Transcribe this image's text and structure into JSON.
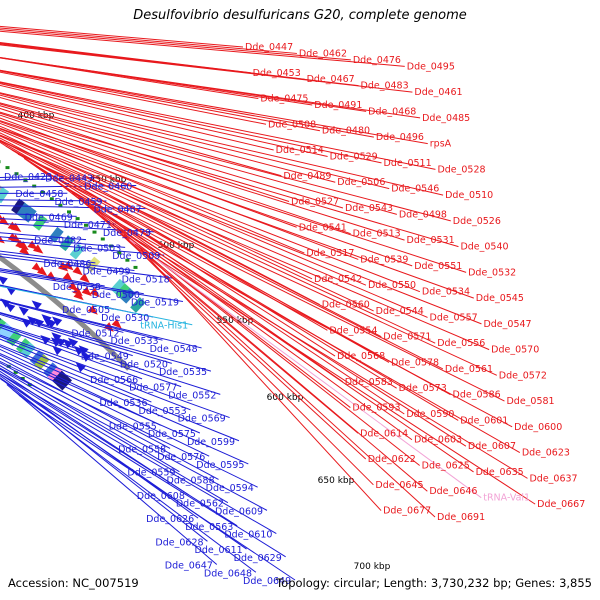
{
  "title": "Desulfovibrio desulfuricans G20, complete genome",
  "footer": {
    "accession": "Accession: NC_007519",
    "topology": "Topology: circular; Length: 3,730,232 bp; Genes: 3,855"
  },
  "colors": {
    "forward": "#e8191d",
    "reverse": "#1c1cd6",
    "trna_fwd": "#f2a3d6",
    "trna_rev": "#27b5e0",
    "backbone": "#8c8c8c",
    "tick_marker": "#188a1c"
  },
  "scale_labels": [
    "400 kbp",
    "450 kbp",
    "500 kbp",
    "550 kbp",
    "600 kbp",
    "650 kbp",
    "700 kbp"
  ],
  "reverse_labels": [
    "Dde_0423",
    "Dde_0443",
    "Dde_0460",
    "Dde_0458",
    "Dde_0459",
    "Dde_0487",
    "Dde_0469",
    "Dde_0471",
    "Dde_0479",
    "Dde_0482",
    "Dde_0503",
    "Dde_0509",
    "Dde_0486",
    "Dde_0499",
    "Dde_0518",
    "Dde_0538",
    "Dde_0500",
    "Dde_0519",
    "Dde_0505",
    "Dde_0530",
    "tRNA-His1",
    "Dde_0512",
    "Dde_0533",
    "Dde_0548",
    "Dde_0549",
    "Dde_0520",
    "Dde_0535",
    "Dde_0566",
    "Dde_0577",
    "Dde_0552",
    "Dde_0536",
    "Dde_0553",
    "Dde_0569",
    "Dde_0555",
    "Dde_0575",
    "Dde_0599",
    "Dde_0558",
    "Dde_0576",
    "Dde_0595",
    "Dde_0559",
    "Dde_0588",
    "Dde_0594",
    "Dde_0608",
    "Dde_0562",
    "Dde_0609",
    "Dde_0626",
    "Dde_0563",
    "Dde_0610",
    "Dde_0628",
    "Dde_0611",
    "Dde_0629",
    "Dde_0647",
    "Dde_0648",
    "Dde_0649"
  ],
  "forward_labels": [
    "Dde_0447",
    "Dde_0462",
    "Dde_0476",
    "Dde_0495",
    "Dde_0453",
    "Dde_0467",
    "Dde_0483",
    "Dde_0461",
    "Dde_0475",
    "Dde_0491",
    "Dde_0468",
    "Dde_0485",
    "Dde_0508",
    "Dde_0480",
    "Dde_0496",
    "rpsA",
    "Dde_0514",
    "Dde_0529",
    "Dde_0511",
    "Dde_0528",
    "Dde_0489",
    "Dde_0506",
    "Dde_0546",
    "Dde_0510",
    "Dde_0527",
    "Dde_0543",
    "Dde_0498",
    "Dde_0526",
    "Dde_0541",
    "Dde_0513",
    "Dde_0531",
    "Dde_0540",
    "Dde_0517",
    "Dde_0539",
    "Dde_0551",
    "Dde_0532",
    "Dde_0542",
    "Dde_0550",
    "Dde_0534",
    "Dde_0545",
    "Dde_0560",
    "Dde_0544",
    "Dde_0557",
    "Dde_0547",
    "Dde_0554",
    "Dde_0571",
    "Dde_0556",
    "Dde_0570",
    "Dde_0568",
    "Dde_0578",
    "Dde_0561",
    "Dde_0572",
    "Dde_0583",
    "Dde_0573",
    "Dde_0586",
    "Dde_0581",
    "Dde_0593",
    "Dde_0590",
    "Dde_0601",
    "Dde_0600",
    "Dde_0614",
    "Dde_0603",
    "Dde_0607",
    "Dde_0623",
    "Dde_0622",
    "Dde_0625",
    "Dde_0635",
    "Dde_0637",
    "Dde_0645",
    "Dde_0646",
    "tRNA-Val1",
    "Dde_0667",
    "Dde_0677",
    "Dde_0691"
  ]
}
